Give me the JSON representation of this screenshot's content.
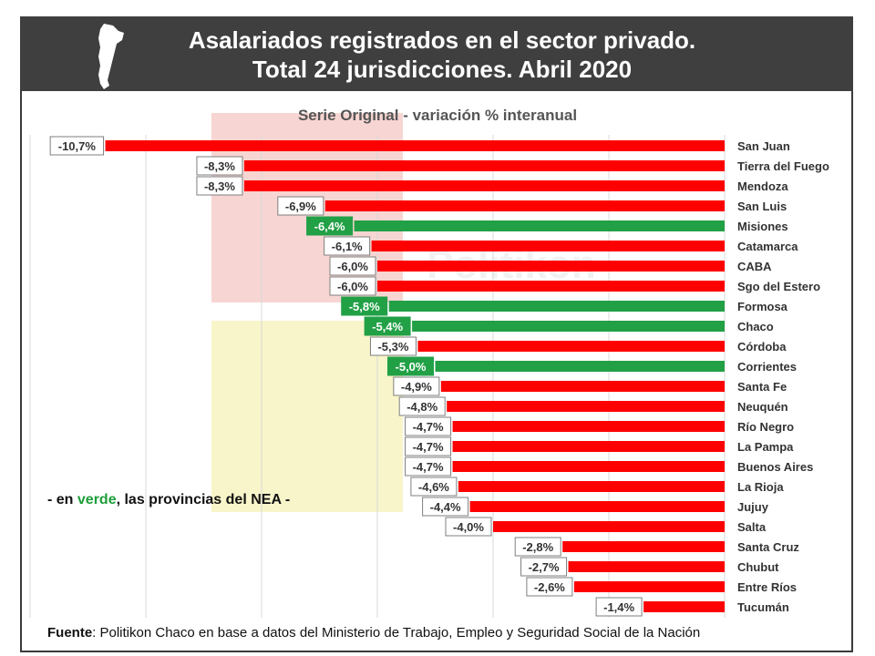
{
  "header": {
    "title_line1": "Asalariados registrados en el sector privado.",
    "title_line2": "Total 24 jurisdicciones. Abril 2020",
    "map_icon": "argentina-map-icon"
  },
  "note": {
    "prefix": "- en ",
    "highlight": "verde",
    "suffix": ", las provincias del NEA -"
  },
  "source": {
    "label": "Fuente",
    "text": ": Politikon Chaco en base a datos del Ministerio de Trabajo, Empleo y Seguridad Social de la Nación"
  },
  "watermark": "Politikon",
  "chart_data": {
    "type": "bar",
    "orientation": "horizontal",
    "title": "Serie Original - variación % interanual",
    "categories": [
      "San Juan",
      "Tierra del Fuego",
      "Mendoza",
      "San Luis",
      "Misiones",
      "Catamarca",
      "CABA",
      "Sgo del Estero",
      "Formosa",
      "Chaco",
      "Córdoba",
      "Corrientes",
      "Santa Fe",
      "Neuquén",
      "Río Negro",
      "La Pampa",
      "Buenos Aires",
      "La Rioja",
      "Jujuy",
      "Salta",
      "Santa Cruz",
      "Chubut",
      "Entre Ríos",
      "Tucumán"
    ],
    "values": [
      -10.7,
      -8.3,
      -8.3,
      -6.9,
      -6.4,
      -6.1,
      -6.0,
      -6.0,
      -5.8,
      -5.4,
      -5.3,
      -5.0,
      -4.9,
      -4.8,
      -4.7,
      -4.7,
      -4.7,
      -4.6,
      -4.4,
      -4.0,
      -2.8,
      -2.7,
      -2.6,
      -1.4
    ],
    "labels": [
      "-10,7%",
      "-8,3%",
      "-8,3%",
      "-6,9%",
      "-6,4%",
      "-6,1%",
      "-6,0%",
      "-6,0%",
      "-5,8%",
      "-5,4%",
      "-5,3%",
      "-5,0%",
      "-4,9%",
      "-4,8%",
      "-4,7%",
      "-4,7%",
      "-4,7%",
      "-4,6%",
      "-4,4%",
      "-4,0%",
      "-2,8%",
      "-2,7%",
      "-2,6%",
      "-1,4%"
    ],
    "nea": [
      false,
      false,
      false,
      false,
      true,
      false,
      false,
      false,
      true,
      true,
      false,
      true,
      false,
      false,
      false,
      false,
      false,
      false,
      false,
      false,
      false,
      false,
      false,
      false
    ],
    "colors": {
      "default": "#ff0000",
      "nea": "#22a046"
    },
    "xlim": [
      -12,
      0
    ],
    "grid": true
  }
}
